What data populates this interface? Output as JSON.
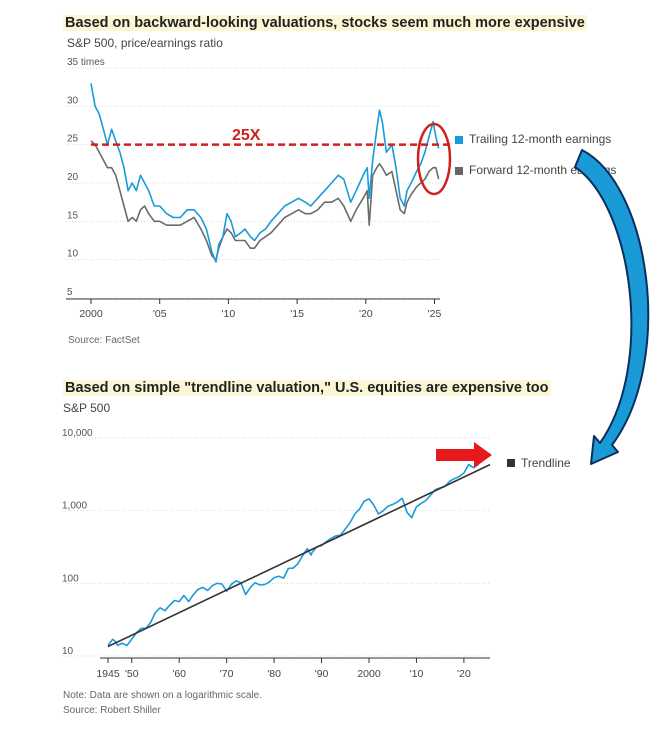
{
  "chart_data": [
    {
      "type": "line",
      "title": "Based on backward-looking valuations, stocks seem much more expensive",
      "subtitle": "S&P 500, price/earnings ratio",
      "ylabel": "times",
      "ylim": [
        5,
        35
      ],
      "xlim": [
        2000,
        2025.4
      ],
      "y_ticks": [
        "35 times",
        "30",
        "25",
        "20",
        "15",
        "10",
        "5"
      ],
      "y_tick_values": [
        35,
        30,
        25,
        20,
        15,
        10,
        5
      ],
      "x_ticks": [
        "2000",
        "'05",
        "'10",
        "'15",
        "'20",
        "'25"
      ],
      "x_tick_values": [
        2000,
        2005,
        2010,
        2015,
        2020,
        2025
      ],
      "annotation": "25X",
      "reference_line": 25,
      "source": "Source: FactSet",
      "series": [
        {
          "name": "Trailing 12-month earnings",
          "color": "#1a9bd7",
          "points": [
            [
              2000,
              33
            ],
            [
              2000.3,
              30
            ],
            [
              2000.6,
              29
            ],
            [
              2000.9,
              27
            ],
            [
              2001.2,
              25
            ],
            [
              2001.5,
              27
            ],
            [
              2001.8,
              25.5
            ],
            [
              2002.1,
              24
            ],
            [
              2002.4,
              22
            ],
            [
              2002.7,
              19
            ],
            [
              2003,
              20
            ],
            [
              2003.3,
              19
            ],
            [
              2003.6,
              21
            ],
            [
              2003.9,
              20
            ],
            [
              2004.2,
              19
            ],
            [
              2004.6,
              17
            ],
            [
              2005,
              17
            ],
            [
              2005.5,
              16
            ],
            [
              2006,
              15.5
            ],
            [
              2006.5,
              15.5
            ],
            [
              2007,
              16.5
            ],
            [
              2007.5,
              16.5
            ],
            [
              2008,
              15.5
            ],
            [
              2008.4,
              14
            ],
            [
              2008.8,
              11
            ],
            [
              2009.1,
              9.7
            ],
            [
              2009.3,
              12
            ],
            [
              2009.6,
              13
            ],
            [
              2009.9,
              16
            ],
            [
              2010.2,
              15
            ],
            [
              2010.5,
              13
            ],
            [
              2010.9,
              13.5
            ],
            [
              2011.2,
              14
            ],
            [
              2011.6,
              13
            ],
            [
              2011.9,
              12.5
            ],
            [
              2012.3,
              13.5
            ],
            [
              2012.7,
              14
            ],
            [
              2013.1,
              15
            ],
            [
              2013.6,
              16
            ],
            [
              2014.1,
              17
            ],
            [
              2014.6,
              17.5
            ],
            [
              2015.1,
              18
            ],
            [
              2015.6,
              17.5
            ],
            [
              2016,
              17
            ],
            [
              2016.5,
              18
            ],
            [
              2017,
              19
            ],
            [
              2017.5,
              20
            ],
            [
              2018,
              21
            ],
            [
              2018.4,
              20.5
            ],
            [
              2018.9,
              17.5
            ],
            [
              2019.3,
              19
            ],
            [
              2019.8,
              21
            ],
            [
              2020.1,
              22
            ],
            [
              2020.25,
              18
            ],
            [
              2020.5,
              23
            ],
            [
              2020.8,
              27
            ],
            [
              2021,
              29.5
            ],
            [
              2021.2,
              28
            ],
            [
              2021.5,
              24
            ],
            [
              2021.9,
              25
            ],
            [
              2022.2,
              22
            ],
            [
              2022.5,
              18
            ],
            [
              2022.8,
              17
            ],
            [
              2023,
              19
            ],
            [
              2023.3,
              20
            ],
            [
              2023.7,
              21.5
            ],
            [
              2024,
              22.5
            ],
            [
              2024.3,
              24
            ],
            [
              2024.6,
              26
            ],
            [
              2024.9,
              28
            ],
            [
              2025.1,
              26
            ],
            [
              2025.3,
              24.5
            ]
          ]
        },
        {
          "name": "Forward 12-month earnings",
          "color": "#6b6b6b",
          "points": [
            [
              2000,
              25.5
            ],
            [
              2000.3,
              25
            ],
            [
              2000.6,
              24
            ],
            [
              2000.9,
              23
            ],
            [
              2001.2,
              22
            ],
            [
              2001.5,
              22
            ],
            [
              2001.8,
              21
            ],
            [
              2002.1,
              19
            ],
            [
              2002.4,
              17
            ],
            [
              2002.7,
              15
            ],
            [
              2003,
              15.5
            ],
            [
              2003.3,
              15
            ],
            [
              2003.6,
              16.5
            ],
            [
              2003.9,
              17
            ],
            [
              2004.2,
              16
            ],
            [
              2004.6,
              15
            ],
            [
              2005,
              15
            ],
            [
              2005.5,
              14.5
            ],
            [
              2006,
              14.5
            ],
            [
              2006.5,
              14.5
            ],
            [
              2007,
              15
            ],
            [
              2007.5,
              15.5
            ],
            [
              2008,
              14
            ],
            [
              2008.4,
              12.5
            ],
            [
              2008.8,
              10.5
            ],
            [
              2009.1,
              10
            ],
            [
              2009.3,
              11.5
            ],
            [
              2009.6,
              13
            ],
            [
              2009.9,
              14
            ],
            [
              2010.2,
              13.5
            ],
            [
              2010.5,
              12.5
            ],
            [
              2010.9,
              12.5
            ],
            [
              2011.2,
              12.5
            ],
            [
              2011.6,
              11.5
            ],
            [
              2011.9,
              11.5
            ],
            [
              2012.3,
              12.5
            ],
            [
              2012.7,
              13
            ],
            [
              2013.1,
              13.5
            ],
            [
              2013.6,
              14.5
            ],
            [
              2014.1,
              15.5
            ],
            [
              2014.6,
              16
            ],
            [
              2015.1,
              16.5
            ],
            [
              2015.6,
              16
            ],
            [
              2016,
              16
            ],
            [
              2016.5,
              16.5
            ],
            [
              2017,
              17.5
            ],
            [
              2017.5,
              17.5
            ],
            [
              2018,
              18
            ],
            [
              2018.4,
              17
            ],
            [
              2018.9,
              15
            ],
            [
              2019.3,
              16.5
            ],
            [
              2019.8,
              18
            ],
            [
              2020.1,
              19
            ],
            [
              2020.25,
              14.5
            ],
            [
              2020.5,
              21
            ],
            [
              2020.8,
              22
            ],
            [
              2021,
              22.5
            ],
            [
              2021.2,
              22
            ],
            [
              2021.5,
              21
            ],
            [
              2021.9,
              21.5
            ],
            [
              2022.2,
              19
            ],
            [
              2022.5,
              16.5
            ],
            [
              2022.8,
              16
            ],
            [
              2023,
              17.5
            ],
            [
              2023.3,
              18.5
            ],
            [
              2023.7,
              19.5
            ],
            [
              2024,
              20
            ],
            [
              2024.3,
              20.5
            ],
            [
              2024.6,
              21.5
            ],
            [
              2024.9,
              22
            ],
            [
              2025.1,
              22
            ],
            [
              2025.3,
              20.5
            ]
          ]
        }
      ]
    },
    {
      "type": "line",
      "scale": "log",
      "title": "Based on simple \"trendline valuation,\" U.S. equities are expensive too",
      "subtitle": "S&P 500",
      "ylim": [
        10,
        10000
      ],
      "xlim": [
        1945,
        2025.5
      ],
      "y_ticks": [
        "10,000",
        "1,000",
        "100",
        "10"
      ],
      "y_tick_values": [
        10000,
        1000,
        100,
        10
      ],
      "x_ticks": [
        "1945",
        "'50",
        "'60",
        "'70",
        "'80",
        "'90",
        "2000",
        "'10",
        "'20"
      ],
      "x_tick_values": [
        1945,
        1950,
        1960,
        1970,
        1980,
        1990,
        2000,
        2010,
        2020
      ],
      "note": "Note: Data are shown on a logarithmic scale.",
      "source": "Source: Robert Shiller",
      "series": [
        {
          "name": "S&P 500",
          "color": "#1a9bd7",
          "points": [
            [
              1945,
              14
            ],
            [
              1946,
              17
            ],
            [
              1946.5,
              16
            ],
            [
              1947,
              14
            ],
            [
              1948,
              15
            ],
            [
              1949,
              14
            ],
            [
              1950,
              17
            ],
            [
              1951,
              21
            ],
            [
              1952,
              24
            ],
            [
              1953,
              24
            ],
            [
              1954,
              29
            ],
            [
              1955,
              40
            ],
            [
              1956,
              46
            ],
            [
              1957,
              42
            ],
            [
              1958,
              50
            ],
            [
              1959,
              58
            ],
            [
              1960,
              56
            ],
            [
              1961,
              68
            ],
            [
              1962,
              56
            ],
            [
              1963,
              70
            ],
            [
              1964,
              83
            ],
            [
              1965,
              88
            ],
            [
              1966,
              80
            ],
            [
              1967,
              93
            ],
            [
              1968,
              100
            ],
            [
              1969,
              98
            ],
            [
              1970,
              78
            ],
            [
              1971,
              97
            ],
            [
              1972,
              108
            ],
            [
              1973,
              102
            ],
            [
              1974,
              70
            ],
            [
              1975,
              88
            ],
            [
              1976,
              102
            ],
            [
              1977,
              95
            ],
            [
              1978,
              96
            ],
            [
              1979,
              104
            ],
            [
              1980,
              120
            ],
            [
              1981,
              125
            ],
            [
              1982,
              118
            ],
            [
              1983,
              160
            ],
            [
              1984,
              162
            ],
            [
              1985,
              185
            ],
            [
              1986,
              240
            ],
            [
              1987,
              300
            ],
            [
              1987.8,
              245
            ],
            [
              1988,
              265
            ],
            [
              1989,
              320
            ],
            [
              1990,
              330
            ],
            [
              1991,
              375
            ],
            [
              1992,
              415
            ],
            [
              1993,
              450
            ],
            [
              1994,
              460
            ],
            [
              1995,
              560
            ],
            [
              1996,
              680
            ],
            [
              1997,
              900
            ],
            [
              1998,
              1050
            ],
            [
              1999,
              1350
            ],
            [
              2000,
              1450
            ],
            [
              2001,
              1200
            ],
            [
              2002,
              900
            ],
            [
              2003,
              1000
            ],
            [
              2004,
              1150
            ],
            [
              2005,
              1220
            ],
            [
              2006,
              1320
            ],
            [
              2007,
              1480
            ],
            [
              2008,
              950
            ],
            [
              2009,
              800
            ],
            [
              2010,
              1130
            ],
            [
              2011,
              1260
            ],
            [
              2012,
              1380
            ],
            [
              2013,
              1650
            ],
            [
              2014,
              1950
            ],
            [
              2015,
              2060
            ],
            [
              2016,
              2150
            ],
            [
              2017,
              2550
            ],
            [
              2018,
              2750
            ],
            [
              2019,
              2950
            ],
            [
              2020,
              3300
            ],
            [
              2021,
              4300
            ],
            [
              2022,
              3900
            ],
            [
              2023,
              4300
            ],
            [
              2024,
              5500
            ],
            [
              2025,
              6000
            ]
          ]
        },
        {
          "name": "Trendline",
          "color": "#333333",
          "points": [
            [
              1945,
              13.5
            ],
            [
              2025.5,
              4300
            ]
          ]
        }
      ]
    }
  ]
}
